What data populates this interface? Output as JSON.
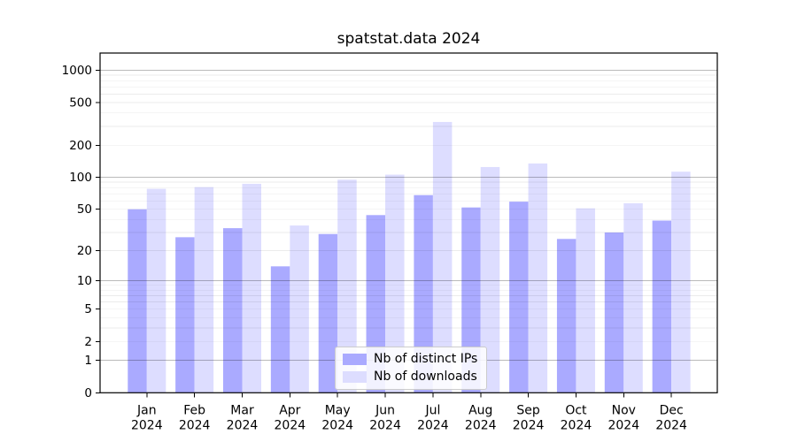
{
  "chart_data": {
    "type": "bar",
    "title": "spatstat.data 2024",
    "xlabel": "",
    "ylabel": "",
    "scale": "log1p",
    "grid": true,
    "legend_position": "lower center",
    "year": "2024",
    "months": [
      "Jan",
      "Feb",
      "Mar",
      "Apr",
      "May",
      "Jun",
      "Jul",
      "Aug",
      "Sep",
      "Oct",
      "Nov",
      "Dec"
    ],
    "series": [
      {
        "name": "Nb of distinct IPs",
        "color": "#aaaaff",
        "values": [
          50,
          27,
          33,
          14,
          29,
          44,
          68,
          52,
          59,
          26,
          30,
          39
        ]
      },
      {
        "name": "Nb of downloads",
        "color": "#ddddff",
        "values": [
          78,
          81,
          87,
          35,
          95,
          106,
          330,
          125,
          135,
          51,
          57,
          113
        ]
      }
    ],
    "yticks": [
      0,
      1,
      2,
      5,
      10,
      20,
      50,
      100,
      200,
      500,
      1000
    ],
    "ytick_labels": [
      "0",
      "1",
      "2",
      "5",
      "10",
      "20",
      "50",
      "100",
      "200",
      "500",
      "1000"
    ],
    "ylim": [
      0,
      1430
    ]
  },
  "colors": {
    "background": "#ffffff",
    "axis": "#000000",
    "major_grid": "rgba(0,0,0,0.27)",
    "minor_grid": "rgba(0,0,0,0.08)",
    "text": "#000000"
  }
}
